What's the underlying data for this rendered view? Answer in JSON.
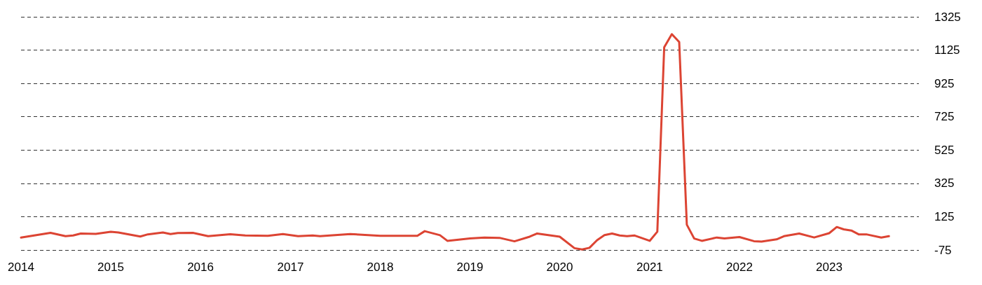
{
  "chart_data": {
    "type": "line",
    "color": "#dc4433",
    "x": [
      "2014-01",
      "2014-05",
      "2014-07",
      "2014-08",
      "2014-09",
      "2014-11",
      "2015-01",
      "2015-02",
      "2015-05",
      "2015-06",
      "2015-08",
      "2015-09",
      "2015-10",
      "2015-12",
      "2016-02",
      "2016-05",
      "2016-07",
      "2016-10",
      "2016-12",
      "2017-02",
      "2017-04",
      "2017-05",
      "2017-09",
      "2018-01",
      "2018-06",
      "2018-07",
      "2018-09",
      "2018-10",
      "2019-01",
      "2019-03",
      "2019-05",
      "2019-07",
      "2019-09",
      "2019-10",
      "2020-01",
      "2020-03",
      "2020-04",
      "2020-05",
      "2020-06",
      "2020-07",
      "2020-08",
      "2020-09",
      "2020-10",
      "2020-11",
      "2021-01",
      "2021-02",
      "2021-03",
      "2021-04",
      "2021-05",
      "2021-06",
      "2021-07",
      "2021-08",
      "2021-10",
      "2021-11",
      "2022-01",
      "2022-03",
      "2022-04",
      "2022-06",
      "2022-07",
      "2022-09",
      "2022-11",
      "2023-01",
      "2023-02",
      "2023-03",
      "2023-04",
      "2023-05",
      "2023-06",
      "2023-08",
      "2023-09"
    ],
    "values": [
      0,
      28,
      8,
      12,
      24,
      22,
      34,
      30,
      6,
      19,
      30,
      21,
      27,
      28,
      8,
      20,
      12,
      10,
      21,
      8,
      12,
      8,
      21,
      10,
      10,
      38,
      14,
      -20,
      -6,
      0,
      -2,
      -23,
      5,
      24,
      5,
      -64,
      -72,
      -62,
      -16,
      14,
      24,
      12,
      8,
      12,
      -20,
      35,
      1142,
      1221,
      1174,
      77,
      -6,
      -20,
      0,
      -6,
      3,
      -22,
      -25,
      -11,
      8,
      24,
      0,
      26,
      63,
      49,
      42,
      19,
      19,
      0,
      8
    ],
    "xlim": [
      "2014-01",
      "2024-01"
    ],
    "xticks": [
      "2014",
      "2015",
      "2016",
      "2017",
      "2018",
      "2019",
      "2020",
      "2021",
      "2022",
      "2023"
    ],
    "ylim": [
      -75,
      1325
    ],
    "yticks": [
      -75,
      125,
      325,
      525,
      725,
      925,
      1125,
      1325
    ],
    "grid": "y",
    "marker": "none",
    "line_style": "solid"
  }
}
